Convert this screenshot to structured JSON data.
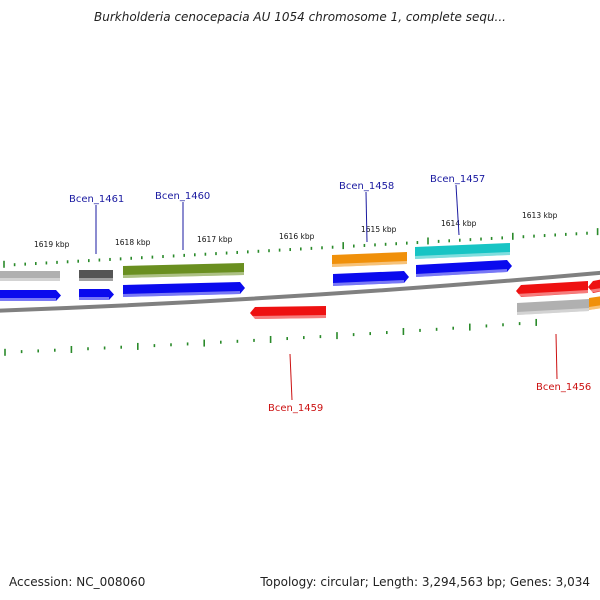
{
  "title": "Burkholderia cenocepacia AU 1054 chromosome 1, complete sequ...",
  "footer": {
    "accession": "Accession: NC_008060",
    "summary": "Topology: circular; Length: 3,294,563 bp; Genes: 3,034"
  },
  "colors": {
    "backbone": "#808080",
    "forward_label": "#1a1aa0",
    "reverse_label": "#cc1111",
    "tick": "#2a8a2a"
  },
  "ruler": [
    {
      "label": "1619 kbp"
    },
    {
      "label": "1618 kbp"
    },
    {
      "label": "1617 kbp"
    },
    {
      "label": "1616 kbp"
    },
    {
      "label": "1615 kbp"
    },
    {
      "label": "1614 kbp"
    },
    {
      "label": "1613 kbp"
    }
  ],
  "gene_labels": [
    {
      "name": "Bcen_1461",
      "strand": "forward"
    },
    {
      "name": "Bcen_1460",
      "strand": "forward"
    },
    {
      "name": "Bcen_1458",
      "strand": "forward"
    },
    {
      "name": "Bcen_1457",
      "strand": "forward"
    },
    {
      "name": "Bcen_1459",
      "strand": "reverse"
    },
    {
      "name": "Bcen_1456",
      "strand": "reverse"
    }
  ],
  "features": [
    {
      "color": "#b0b0b0",
      "strand": "forward"
    },
    {
      "color": "#555555",
      "strand": "forward"
    },
    {
      "color": "#6a8f20",
      "strand": "forward"
    },
    {
      "color": "#f0900a",
      "strand": "forward"
    },
    {
      "color": "#17c4c4",
      "strand": "forward"
    },
    {
      "color": "#0a0aee",
      "strand": "forward"
    },
    {
      "color": "#0a0aee",
      "strand": "forward"
    },
    {
      "color": "#0a0aee",
      "strand": "forward"
    },
    {
      "color": "#0a0aee",
      "strand": "forward"
    },
    {
      "color": "#0a0aee",
      "strand": "forward"
    },
    {
      "color": "#ee1111",
      "strand": "reverse"
    },
    {
      "color": "#ee1111",
      "strand": "reverse"
    },
    {
      "color": "#ee1111",
      "strand": "reverse"
    },
    {
      "color": "#b0b0b0",
      "strand": "reverse"
    },
    {
      "color": "#f0900a",
      "strand": "reverse"
    }
  ]
}
